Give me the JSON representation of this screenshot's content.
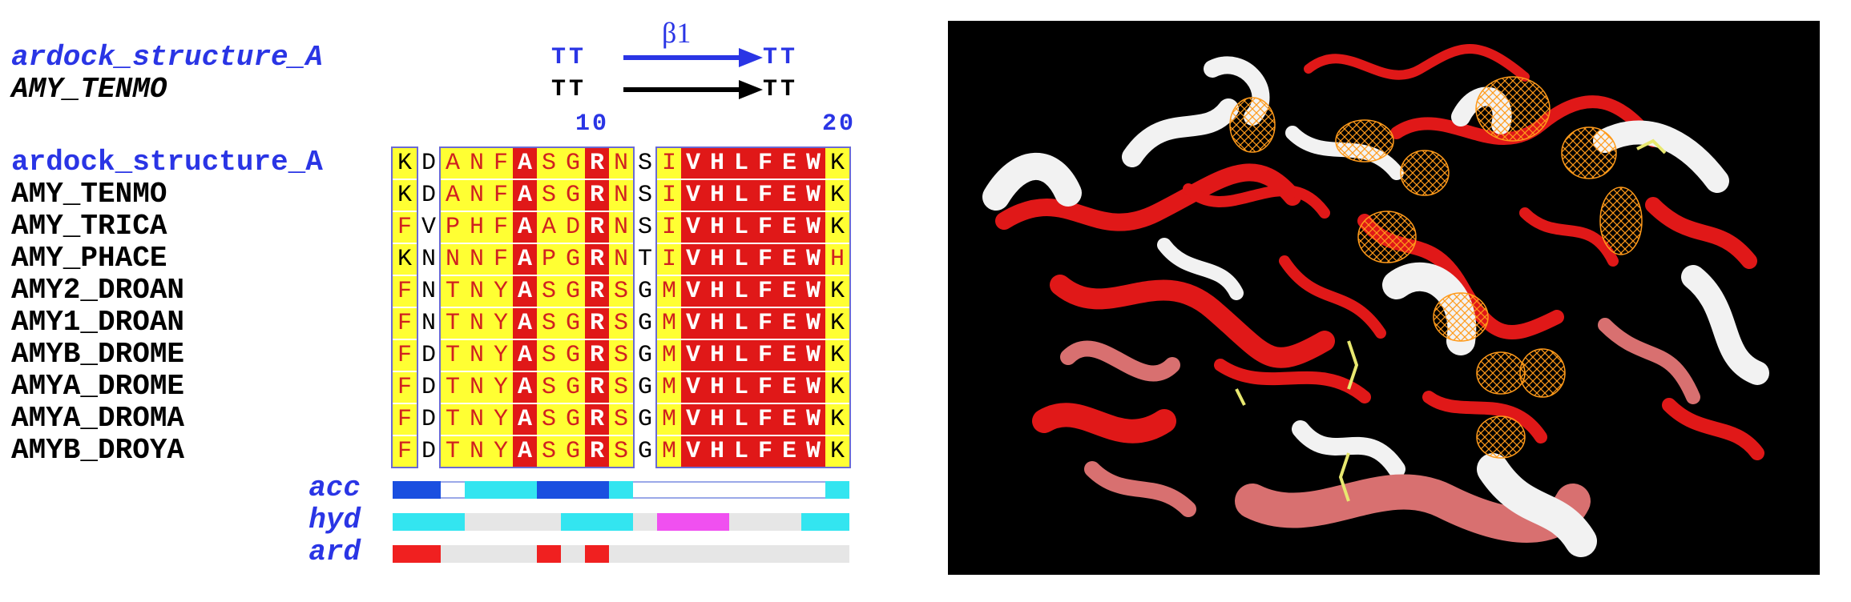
{
  "alignment": {
    "secondary_structure": {
      "element_label": "β1",
      "rows": [
        {
          "name": "ardock_structure_A",
          "left": "TT",
          "right": "TT",
          "color": "#2a35e5"
        },
        {
          "name": "AMY_TENMO",
          "left": "TT",
          "right": "TT",
          "color": "#000000"
        }
      ]
    },
    "ruler": [
      "10",
      "20"
    ],
    "sequences": [
      {
        "name": "ardock_structure_A",
        "residues": "KDANFASGRNSIVHLFEWK"
      },
      {
        "name": "AMY_TENMO",
        "residues": "KDANFASGRNSIVHLFEWK"
      },
      {
        "name": "AMY_TRICA",
        "residues": "FVPHFAADRNSIVHLFEWK"
      },
      {
        "name": "AMY_PHACE",
        "residues": "KNNNFAPGRNTIVHLFEWH"
      },
      {
        "name": "AMY2_DROAN",
        "residues": "FNTNYASGRSGMVHLFEWK"
      },
      {
        "name": "AMY1_DROAN",
        "residues": "FNTNYASGRSGMVHLFEWK"
      },
      {
        "name": "AMYB_DROME",
        "residues": "FDTNYASGRSGMVHLFEWK"
      },
      {
        "name": "AMYA_DROME",
        "residues": "FDTNYASGRSGMVHLFEWK"
      },
      {
        "name": "AMYA_DROMA",
        "residues": "FDTNYASGRSGMVHLFEWK"
      },
      {
        "name": "AMYB_DROYA",
        "residues": "FDTNYASGRSGMVHLFEWK"
      }
    ],
    "column_styles": [
      "Y",
      "W",
      "Y",
      "Y",
      "Y",
      "R",
      "Y",
      "Y",
      "R",
      "Y",
      "W",
      "Y",
      "R",
      "R",
      "R",
      "R",
      "R",
      "R",
      "Y"
    ],
    "tracks": [
      {
        "name": "acc",
        "segments": [
          "#1a4fe0",
          "#1a4fe0",
          "#ffffff",
          "#33e5f0",
          "#33e5f0",
          "#33e5f0",
          "#1a4fe0",
          "#1a4fe0",
          "#1a4fe0",
          "#33e5f0",
          "#ffffff",
          "#ffffff",
          "#ffffff",
          "#ffffff",
          "#ffffff",
          "#ffffff",
          "#ffffff",
          "#ffffff",
          "#33e5f0"
        ]
      },
      {
        "name": "hyd",
        "segments": [
          "#33e5f0",
          "#33e5f0",
          "#33e5f0",
          "#e6e6e6",
          "#e6e6e6",
          "#e6e6e6",
          "#e6e6e6",
          "#33e5f0",
          "#33e5f0",
          "#33e5f0",
          "#e6e6e6",
          "#f050f0",
          "#f050f0",
          "#f050f0",
          "#e6e6e6",
          "#e6e6e6",
          "#e6e6e6",
          "#33e5f0",
          "#33e5f0"
        ]
      },
      {
        "name": "ard",
        "segments": [
          "#f02020",
          "#f02020",
          "#e6e6e6",
          "#e6e6e6",
          "#e6e6e6",
          "#e6e6e6",
          "#f02020",
          "#e6e6e6",
          "#f02020",
          "#e6e6e6",
          "#e6e6e6",
          "#e6e6e6",
          "#e6e6e6",
          "#e6e6e6",
          "#e6e6e6",
          "#e6e6e6",
          "#e6e6e6",
          "#e6e6e6",
          "#e6e6e6"
        ]
      }
    ]
  },
  "structure": {
    "background": "#000000",
    "ribbon_colors": [
      "#e01818",
      "#f2f2f2",
      "#d87070"
    ],
    "mesh_color": "#ff9a1a"
  }
}
